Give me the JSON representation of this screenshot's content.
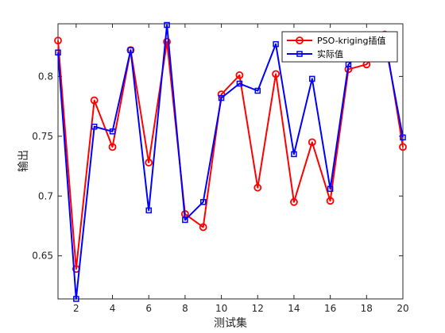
{
  "chart_data": {
    "type": "line",
    "x": [
      1,
      2,
      3,
      4,
      5,
      6,
      7,
      8,
      9,
      10,
      11,
      12,
      13,
      14,
      15,
      16,
      17,
      18,
      19,
      20
    ],
    "xlabel": "测试集",
    "ylabel": "输出",
    "xlim": [
      1,
      20
    ],
    "ylim": [
      0.614,
      0.844
    ],
    "xticks": [
      2,
      4,
      6,
      8,
      10,
      12,
      14,
      16,
      18,
      20
    ],
    "yticks": [
      0.65,
      0.7,
      0.75,
      0.8
    ],
    "ytick_labels": [
      "0.65",
      "0.7",
      "0.75",
      "0.8"
    ],
    "grid": false,
    "legend_position": "top-right",
    "series": [
      {
        "name": "PSO-kriging插值",
        "color": "#ff0000",
        "marker": "circle",
        "values": [
          0.83,
          0.639,
          0.78,
          0.741,
          0.822,
          0.728,
          0.829,
          0.685,
          0.674,
          0.785,
          0.801,
          0.707,
          0.802,
          0.695,
          0.745,
          0.696,
          0.806,
          0.81,
          0.835,
          0.741
        ]
      },
      {
        "name": "实际值",
        "color": "#0000ff",
        "marker": "square",
        "values": [
          0.82,
          0.614,
          0.758,
          0.754,
          0.822,
          0.688,
          0.843,
          0.68,
          0.695,
          0.782,
          0.794,
          0.788,
          0.827,
          0.735,
          0.798,
          0.706,
          0.81,
          0.826,
          0.83,
          0.749
        ]
      }
    ]
  }
}
